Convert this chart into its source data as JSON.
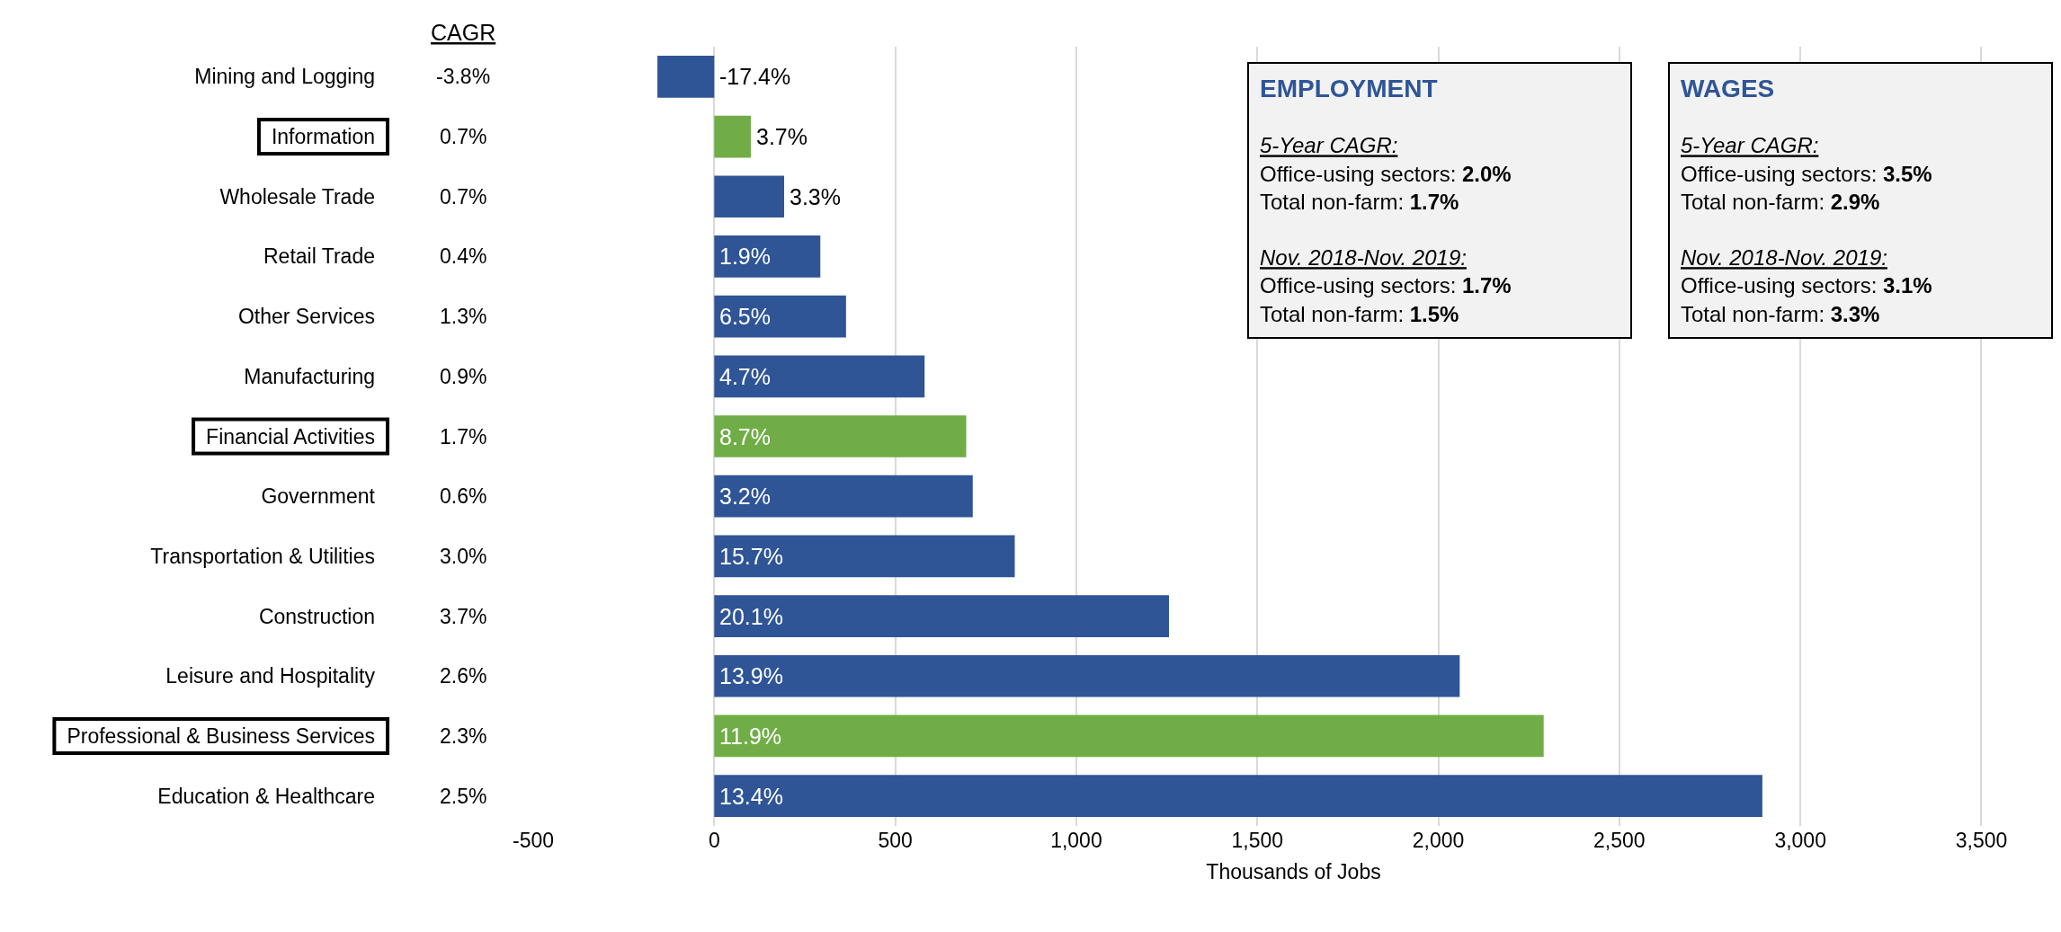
{
  "chart_data": {
    "type": "bar",
    "orientation": "horizontal",
    "xlabel": "Thousands of Jobs",
    "categories": [
      "Mining and Logging",
      "Information",
      "Wholesale Trade",
      "Retail Trade",
      "Other Services",
      "Manufacturing",
      "Financial Activities",
      "Government",
      "Transportation & Utilities",
      "Construction",
      "Leisure and Hospitality",
      "Professional & Business Services",
      "Education & Healthcare"
    ],
    "values": [
      -157,
      101,
      193,
      293,
      364,
      581,
      696,
      714,
      830,
      1256,
      2059,
      2291,
      2895
    ],
    "colors": [
      "#2f5597",
      "#70ad47",
      "#2f5597",
      "#2f5597",
      "#2f5597",
      "#2f5597",
      "#70ad47",
      "#2f5597",
      "#2f5597",
      "#2f5597",
      "#2f5597",
      "#70ad47",
      "#2f5597"
    ],
    "xlim": [
      -500,
      3700
    ],
    "xticks": [
      {
        "value": -500,
        "label": "-500"
      },
      0,
      500,
      {
        "value": 1000,
        "label": "1,000"
      },
      {
        "value": 1500,
        "label": "1,500"
      },
      {
        "value": 2000,
        "label": "2,000"
      },
      {
        "value": 2500,
        "label": "2,500"
      },
      {
        "value": 3000,
        "label": "3,000"
      },
      {
        "value": 3500,
        "label": "3,500"
      }
    ],
    "grid": "x",
    "legend": false,
    "annotations": [
      "CAGR",
      "-3.8%",
      "0.7%",
      "0.7%",
      "0.4%",
      "1.3%",
      "0.9%",
      "1.7%",
      "0.6%",
      "3.0%",
      "3.7%",
      "2.6%",
      "2.3%",
      "2.5%",
      {
        "text": "-17.4%",
        "x": 0,
        "y": "Mining and Logging"
      },
      {
        "text": "3.7%",
        "x": 101,
        "y": "Information"
      },
      {
        "text": "3.3%",
        "x": 193,
        "y": "Wholesale Trade"
      },
      {
        "text": "1.9%",
        "y": "Retail Trade"
      },
      {
        "text": "6.5%",
        "y": "Other Services"
      },
      {
        "text": "4.7%",
        "y": "Manufacturing"
      },
      {
        "text": "8.7%",
        "y": "Financial Activities"
      },
      {
        "text": "3.2%",
        "y": "Government"
      },
      {
        "text": "15.7%",
        "y": "Transportation & Utilities"
      },
      {
        "text": "20.1%",
        "y": "Construction"
      },
      {
        "text": "13.9%",
        "y": "Leisure and Hospitality"
      },
      {
        "text": "11.9%",
        "y": "Professional & Business Services"
      },
      {
        "text": "13.4%",
        "y": "Education & Healthcare"
      },
      "EMPLOYMENT\n\n5-Year CAGR:\nOffice-using sectors: 2.0%\nTotal non-farm: 1.7%\n\nNov. 2018-Nov. 2019:\nOffice-using sectors: 1.7%\nTotal non-farm: 1.5%",
      "WAGES\n\n5-Year CAGR:\nOffice-using sectors: 3.5%\nTotal non-farm: 2.9%\n\nNov. 2018-Nov. 2019:\nOffice-using sectors: 3.1%\nTotal non-farm: 3.3%"
    ]
  }
}
